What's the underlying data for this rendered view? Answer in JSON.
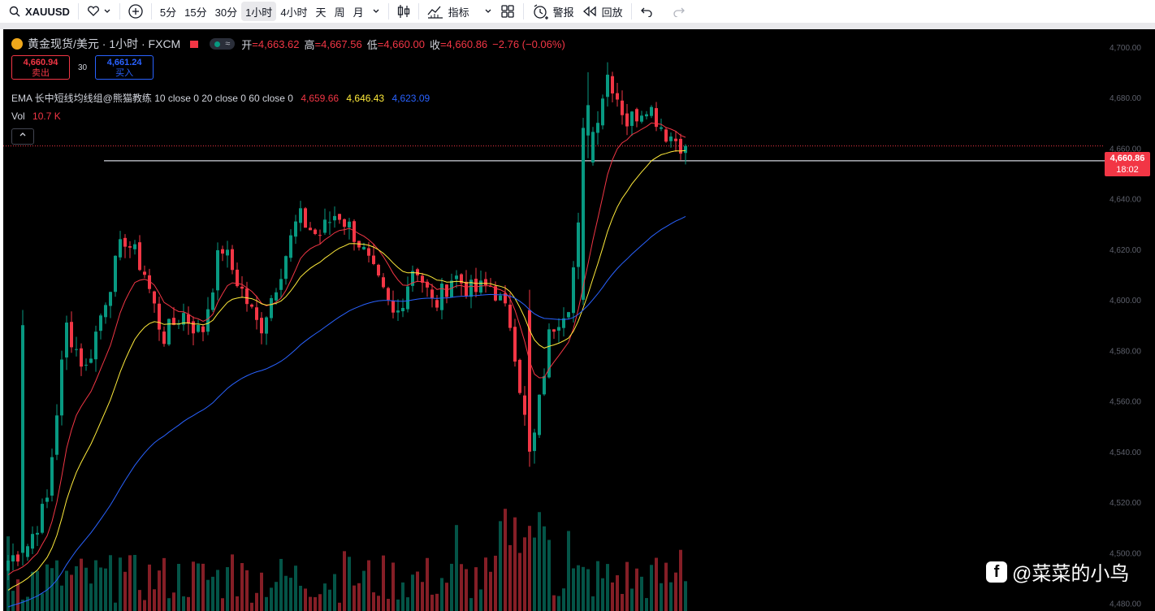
{
  "toolbar": {
    "symbol": "XAUUSD",
    "intervals": [
      "5分",
      "15分",
      "30分",
      "1小时",
      "4小时",
      "天",
      "周",
      "月"
    ],
    "active_interval": "1小时",
    "indicators_label": "指标",
    "alert_label": "警报",
    "replay_label": "回放"
  },
  "legend": {
    "title": "黄金现货/美元 · 1小时 · FXCM",
    "pill_text": "≈",
    "open_label": "开",
    "open": "=4,663.62",
    "high_label": "高",
    "high": "=4,667.56",
    "low_label": "低",
    "low": "=4,660.00",
    "close_label": "收",
    "close": "=4,660.86",
    "change": "−2.76 (−0.06%)"
  },
  "trade": {
    "sell_price": "4,660.94",
    "sell_label": "卖出",
    "spread": "30",
    "buy_price": "4,661.24",
    "buy_label": "买入"
  },
  "ema": {
    "label": "EMA 长中短线均线组@熊猫教练 10 close 0 20 close 0 60 close 0",
    "v1": "4,659.66",
    "v2": "4,646.43",
    "v3": "4,623.09"
  },
  "vol": {
    "label": "Vol",
    "value": "10.7 K"
  },
  "price_tag": {
    "price": "4,660.86",
    "countdown": "18:02"
  },
  "watermark": "@菜菜的小鸟",
  "colors": {
    "up": "#089981",
    "down": "#f23645",
    "ema10": "#f23645",
    "ema20": "#ffeb3b",
    "ema60": "#2962ff"
  },
  "chart_data": {
    "type": "candlestick",
    "y_axis_ticks": [
      4700,
      4680,
      4660,
      4640,
      4620,
      4600,
      4580,
      4560,
      4540,
      4520,
      4500,
      4480
    ],
    "y_axis_labels": [
      "4,700.00",
      "4,680.00",
      "4,660.00",
      "4,640.00",
      "4,620.00",
      "4,600.00",
      "4,580.00",
      "4,560.00",
      "4,540.00",
      "4,520.00",
      "4,500.00",
      "4,480.00"
    ],
    "ylim": [
      4477,
      4707
    ],
    "horizontal_line": 4655.0,
    "last_price": 4660.86,
    "anchors": [
      {
        "close": 4497,
        "high": 4503,
        "low": 4490
      },
      {
        "close": 4503,
        "high": 4510,
        "low": 4495
      },
      {
        "close": 4520,
        "high": 4527,
        "low": 4510
      },
      {
        "close": 4590,
        "high": 4596,
        "low": 4522
      },
      {
        "close": 4572,
        "high": 4590,
        "low": 4566
      },
      {
        "close": 4600,
        "high": 4606,
        "low": 4592
      },
      {
        "close": 4625,
        "high": 4632,
        "low": 4612
      },
      {
        "close": 4612,
        "high": 4630,
        "low": 4604
      },
      {
        "close": 4585,
        "high": 4602,
        "low": 4576
      },
      {
        "close": 4595,
        "high": 4602,
        "low": 4583
      },
      {
        "close": 4586,
        "high": 4598,
        "low": 4580
      },
      {
        "close": 4622,
        "high": 4633,
        "low": 4580
      },
      {
        "close": 4605,
        "high": 4623,
        "low": 4600
      },
      {
        "close": 4588,
        "high": 4606,
        "low": 4570
      },
      {
        "close": 4610,
        "high": 4622,
        "low": 4598
      },
      {
        "close": 4633,
        "high": 4640,
        "low": 4612
      },
      {
        "close": 4625,
        "high": 4640,
        "low": 4620
      },
      {
        "close": 4635,
        "high": 4643,
        "low": 4603
      },
      {
        "close": 4625,
        "high": 4645,
        "low": 4604
      },
      {
        "close": 4608,
        "high": 4624,
        "low": 4586
      },
      {
        "close": 4592,
        "high": 4610,
        "low": 4590
      },
      {
        "close": 4615,
        "high": 4622,
        "low": 4596
      },
      {
        "close": 4597,
        "high": 4616,
        "low": 4588
      },
      {
        "close": 4610,
        "high": 4622,
        "low": 4594
      },
      {
        "close": 4603,
        "high": 4622,
        "low": 4598
      },
      {
        "close": 4606,
        "high": 4616,
        "low": 4595
      },
      {
        "close": 4590,
        "high": 4618,
        "low": 4568
      },
      {
        "close": 4536,
        "high": 4612,
        "low": 4534
      },
      {
        "close": 4588,
        "high": 4596,
        "low": 4574
      },
      {
        "close": 4600,
        "high": 4606,
        "low": 4585
      },
      {
        "close": 4660,
        "high": 4666,
        "low": 4600
      },
      {
        "close": 4690,
        "high": 4690,
        "low": 4654
      },
      {
        "close": 4670,
        "high": 4676,
        "low": 4658
      },
      {
        "close": 4678,
        "high": 4680,
        "low": 4664
      },
      {
        "close": 4666,
        "high": 4676,
        "low": 4660
      },
      {
        "close": 4661,
        "high": 4668,
        "low": 4660
      }
    ],
    "ema10": {
      "start": 4490,
      "end": 4659.66
    },
    "ema20": {
      "start": 4484,
      "end": 4646.43
    },
    "ema60": {
      "start": 4478,
      "end": 4623.09
    }
  }
}
